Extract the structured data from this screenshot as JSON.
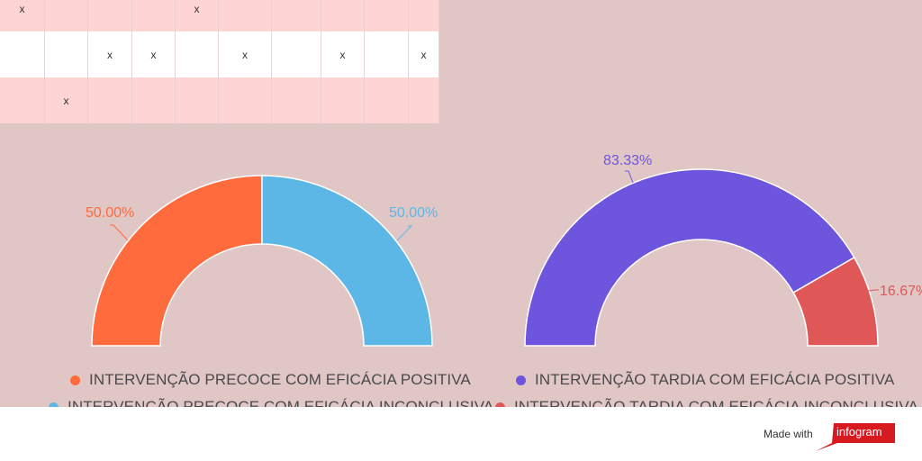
{
  "grid": {
    "rows": [
      [
        "x",
        "",
        "",
        "",
        "x",
        "",
        "",
        "",
        "",
        ""
      ],
      [
        "",
        "",
        "x",
        "x",
        "",
        "x",
        "",
        "x",
        "",
        "x"
      ],
      [
        "",
        "x",
        "",
        "",
        "",
        "",
        "",
        "",
        "",
        ""
      ]
    ]
  },
  "charts": [
    {
      "legend": [
        {
          "label": "INTERVENÇÃO PRECOCE COM EFICÁCIA POSITIVA",
          "color": "#ff6b3d"
        },
        {
          "label": "INTERVENÇÃO PRECOCE COM EFICÁCIA INCONCLUSIVA",
          "color": "#5db7e6"
        }
      ]
    },
    {
      "legend": [
        {
          "label": "INTERVENÇÃO TARDIA COM EFICÁCIA POSITIVA",
          "color": "#6e55de"
        },
        {
          "label": "INTERVENÇÃO TARDIA COM EFICÁCIA INCONCLUSIVA",
          "color": "#e05757"
        }
      ]
    }
  ],
  "chart_data": [
    {
      "type": "pie",
      "variant": "semi-donut",
      "series": [
        {
          "name": "INTERVENÇÃO PRECOCE COM EFICÁCIA POSITIVA",
          "value": 50.0,
          "label": "50.00%",
          "color": "#ff6b3d"
        },
        {
          "name": "INTERVENÇÃO PRECOCE COM EFICÁCIA INCONCLUSIVA",
          "value": 50.0,
          "label": "50.00%",
          "color": "#5db7e6"
        }
      ]
    },
    {
      "type": "pie",
      "variant": "semi-donut",
      "series": [
        {
          "name": "INTERVENÇÃO TARDIA COM EFICÁCIA POSITIVA",
          "value": 83.33,
          "label": "83.33%",
          "color": "#6e55de"
        },
        {
          "name": "INTERVENÇÃO TARDIA COM EFICÁCIA INCONCLUSIVA",
          "value": 16.67,
          "label": "16.67%",
          "color": "#e05757"
        }
      ]
    }
  ],
  "footer": {
    "made_with": "Made with",
    "brand": "infogram",
    "brand_color": "#d71920"
  }
}
